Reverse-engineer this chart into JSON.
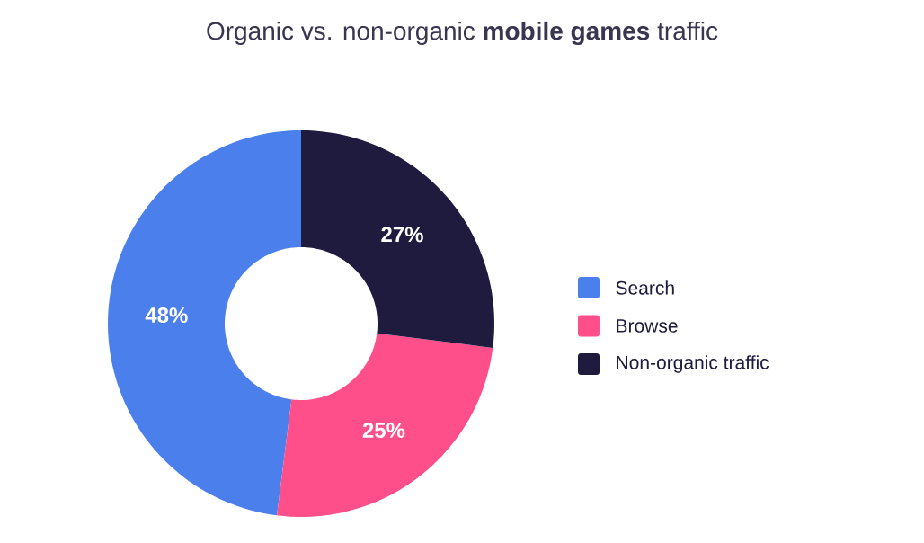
{
  "chart_data": {
    "type": "donut",
    "title": "Organic vs. non-organic **mobile games** traffic",
    "categories": [
      "Search",
      "Browse",
      "Non-organic traffic"
    ],
    "values": [
      48,
      25,
      27
    ],
    "colors": [
      "#4a7fec",
      "#ff4f8b",
      "#1e1b3f"
    ],
    "value_labels": [
      "48%",
      "25%",
      "27%"
    ],
    "legend": "right"
  }
}
